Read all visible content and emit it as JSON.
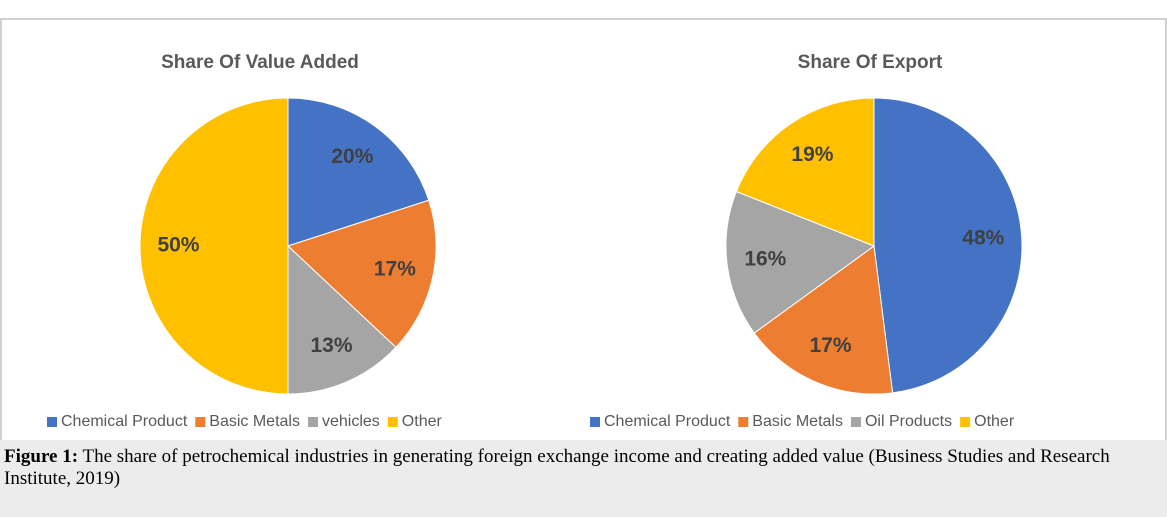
{
  "chart_data": [
    {
      "type": "pie",
      "title": "Share Of Value Added",
      "categories": [
        "Chemical Product",
        "Basic Metals",
        "vehicles",
        "Other"
      ],
      "values": [
        20,
        17,
        13,
        50
      ],
      "value_labels": [
        "20%",
        "17%",
        "13%",
        "50%"
      ],
      "colors": [
        "#4472c4",
        "#ed7d31",
        "#a5a5a5",
        "#ffc000"
      ],
      "legend": "bottom"
    },
    {
      "type": "pie",
      "title": "Share Of Export",
      "categories": [
        "Chemical Product",
        "Basic Metals",
        "Oil Products",
        "Other"
      ],
      "values": [
        48,
        17,
        16,
        19
      ],
      "value_labels": [
        "48%",
        "17%",
        "16%",
        "19%"
      ],
      "colors": [
        "#4472c4",
        "#ed7d31",
        "#a5a5a5",
        "#ffc000"
      ],
      "legend": "bottom"
    }
  ],
  "caption": {
    "label": "Figure 1:",
    "text": "The share of petrochemical industries in generating foreign exchange income and creating added value (Business Studies and Research Institute, 2019)"
  }
}
